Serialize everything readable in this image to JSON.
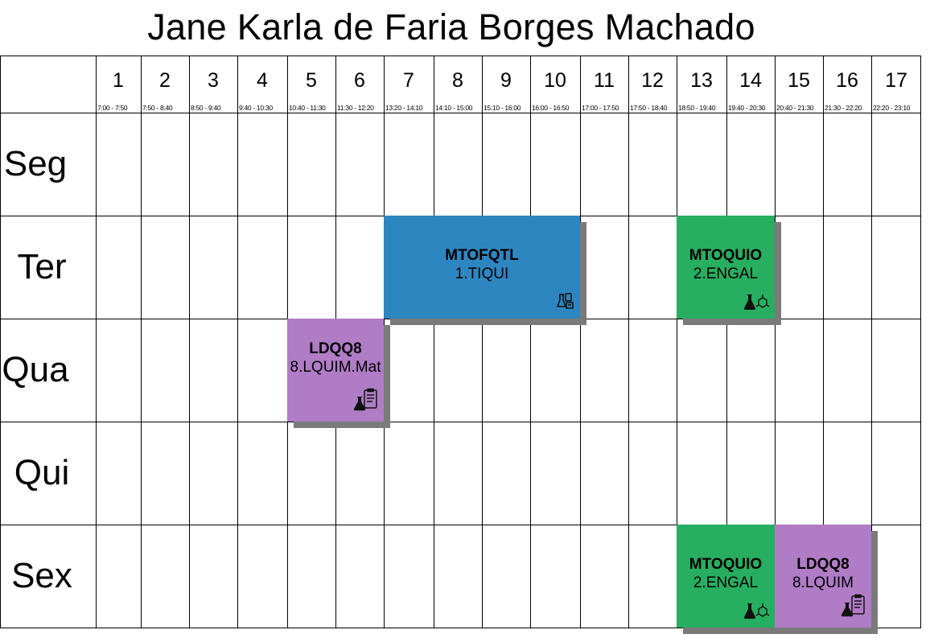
{
  "title": "Jane Karla de Faria Borges Machado",
  "periods": [
    {
      "num": "1",
      "time": "7:00 - 7:50"
    },
    {
      "num": "2",
      "time": "7:50 - 8:40"
    },
    {
      "num": "3",
      "time": "8:50 - 9:40"
    },
    {
      "num": "4",
      "time": "9:40 - 10:30"
    },
    {
      "num": "5",
      "time": "10:40 - 11:30"
    },
    {
      "num": "6",
      "time": "11:30 - 12:20"
    },
    {
      "num": "7",
      "time": "13:20 - 14:10"
    },
    {
      "num": "8",
      "time": "14:10 - 15:00"
    },
    {
      "num": "9",
      "time": "15:10 - 16:00"
    },
    {
      "num": "10",
      "time": "16:00 - 16:50"
    },
    {
      "num": "11",
      "time": "17:00 - 17:50"
    },
    {
      "num": "12",
      "time": "17:50 - 18:40"
    },
    {
      "num": "13",
      "time": "18:50 - 19:40"
    },
    {
      "num": "14",
      "time": "19:40 - 20:30"
    },
    {
      "num": "15",
      "time": "20:40 - 21:30"
    },
    {
      "num": "16",
      "time": "21:30 - 22:20"
    },
    {
      "num": "17",
      "time": "22:20 - 23:10"
    }
  ],
  "days": [
    "Seg",
    "Ter",
    "Qua",
    "Qui",
    "Sex"
  ],
  "classes": [
    {
      "day": 1,
      "start": 7,
      "end": 10,
      "code": "MTOFQTL",
      "group": "1.TIQUI",
      "color": "#2e86c1",
      "icon": "lab-equipment-icon"
    },
    {
      "day": 1,
      "start": 13,
      "end": 14,
      "code": "MTOQUIO",
      "group": "2.ENGAL",
      "color": "#27ae60",
      "icon": "flask-molecule-icon"
    },
    {
      "day": 2,
      "start": 5,
      "end": 6,
      "code": "LDQQ8",
      "group": "8.LQUIM.Mat",
      "color": "#b07cc6",
      "icon": "clipboard-flask-icon"
    },
    {
      "day": 4,
      "start": 13,
      "end": 14,
      "code": "MTOQUIO",
      "group": "2.ENGAL",
      "color": "#27ae60",
      "icon": "flask-molecule-icon"
    },
    {
      "day": 4,
      "start": 15,
      "end": 16,
      "code": "LDQQ8",
      "group": "8.LQUIM",
      "color": "#b07cc6",
      "icon": "clipboard-flask-icon"
    }
  ]
}
